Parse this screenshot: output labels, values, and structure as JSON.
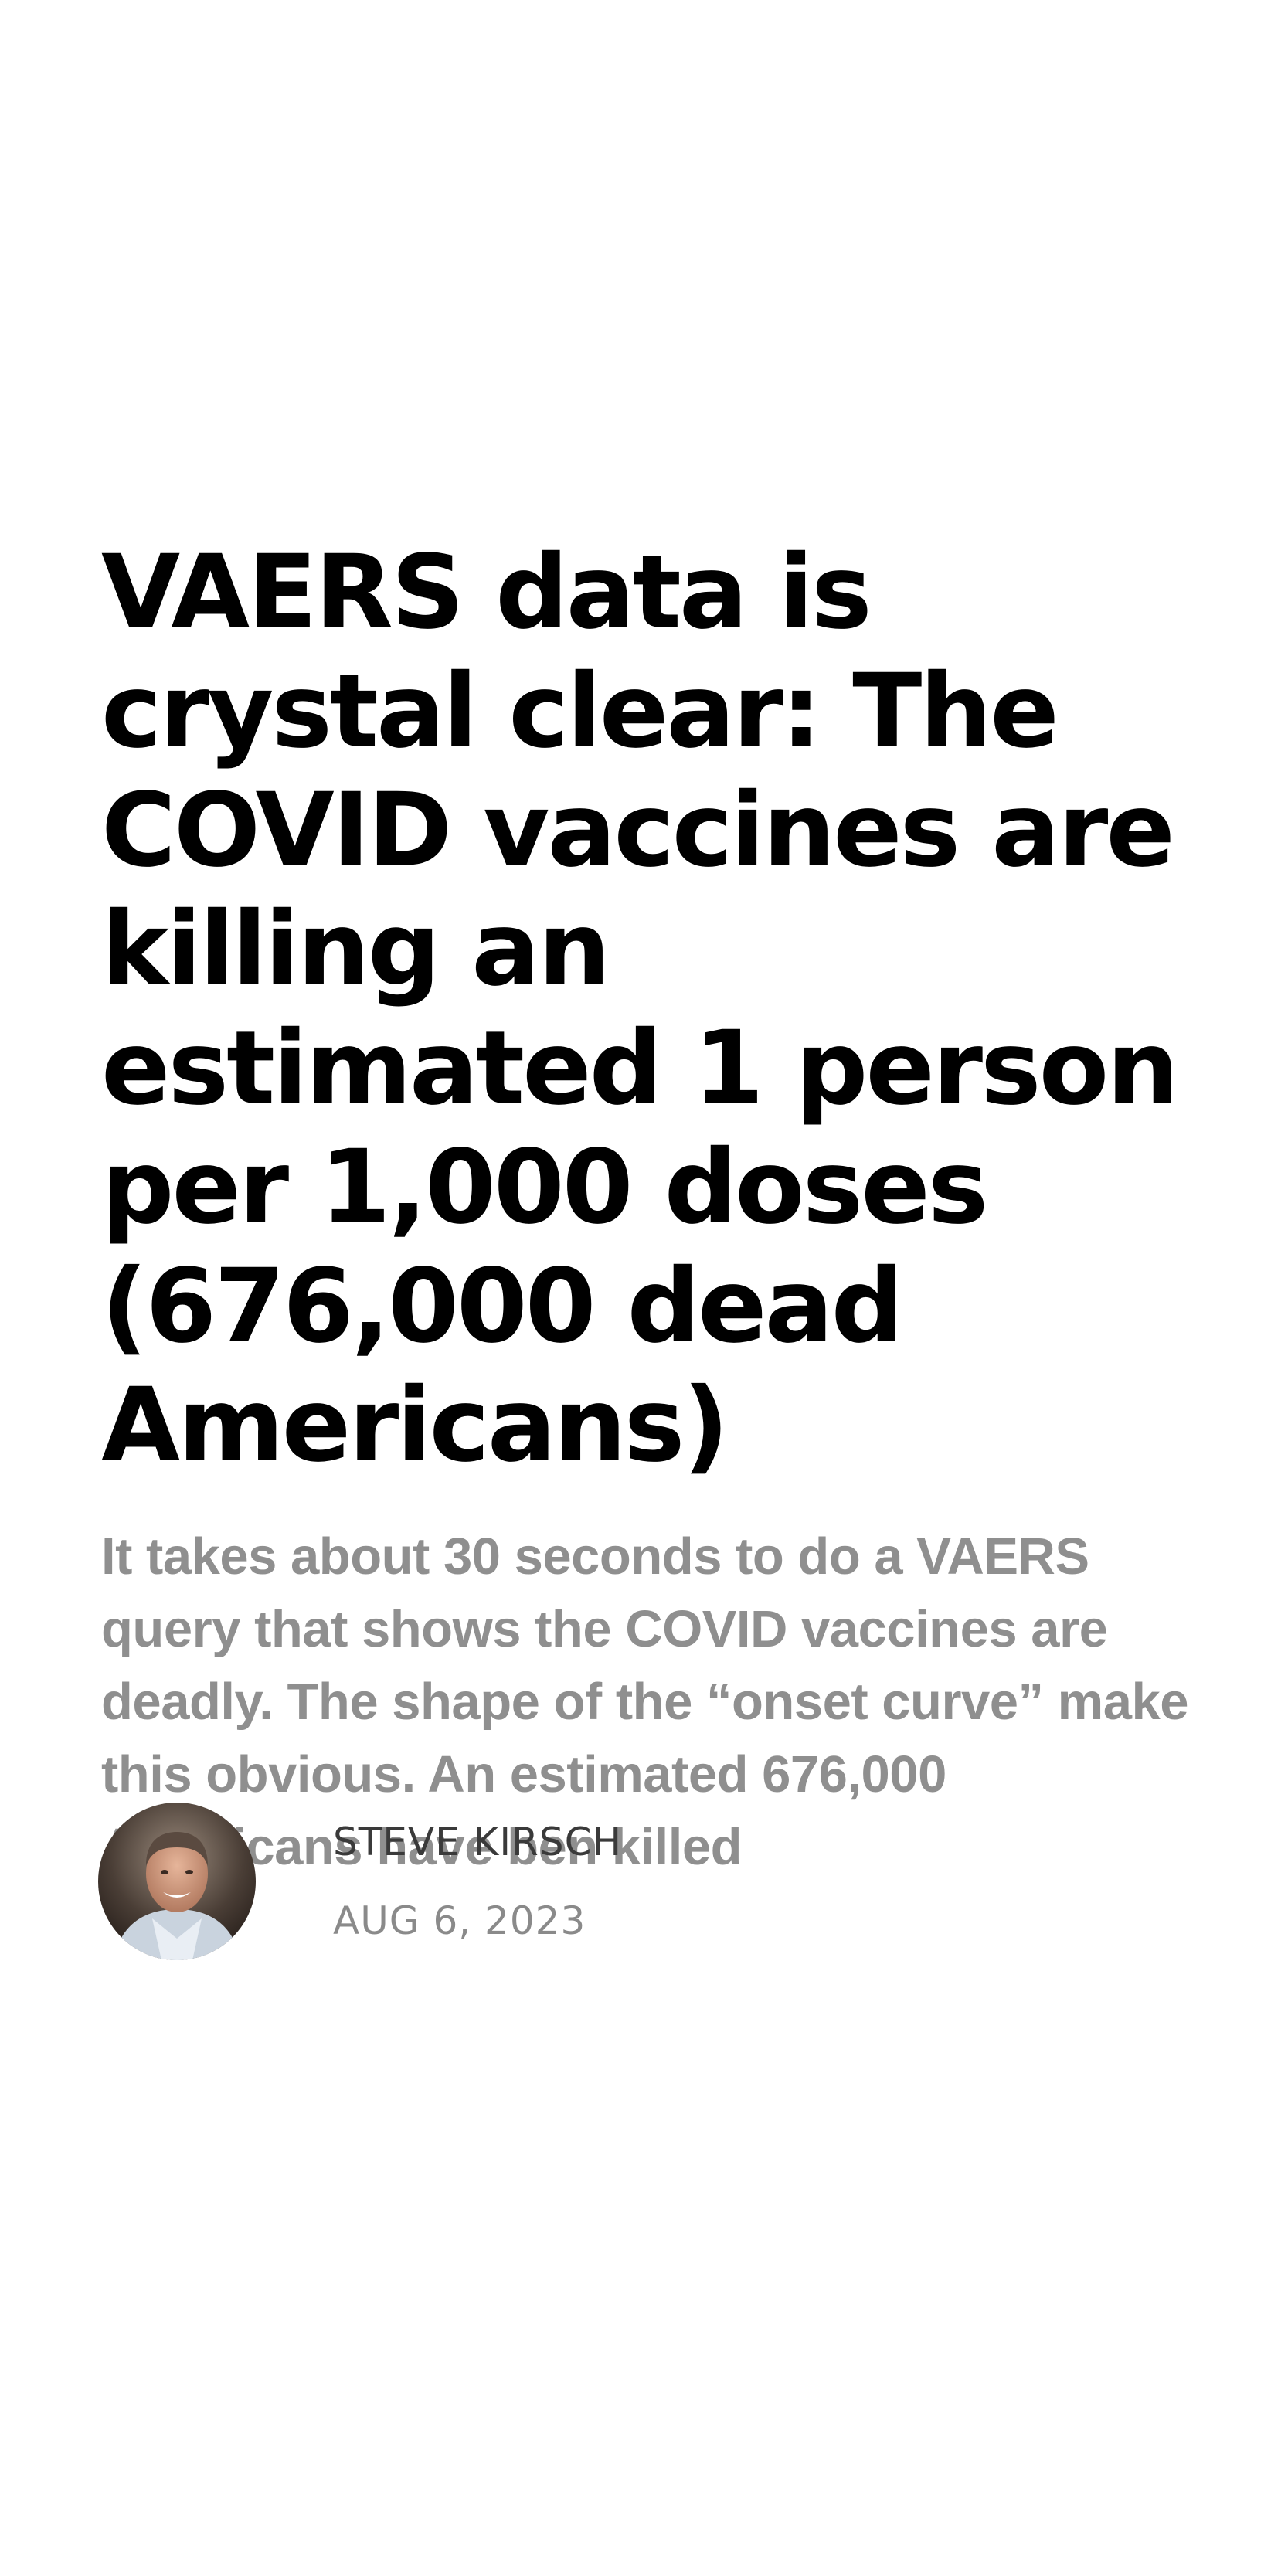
{
  "post": {
    "title": "VAERS data is crystal clear: The COVID vaccines are killing an estimated 1 person per 1,000 doses (676,000 dead Americans)",
    "subtitle": "It takes about 30 seconds to do a VAERS query that shows the COVID vaccines are deadly. The shape of the “onset curve” make this obvious. An estimated 676,000 Americans have ben killed",
    "author": {
      "name": "STEVE KIRSCH",
      "avatar_icon": "author-photo-icon"
    },
    "date": "AUG 6, 2023"
  },
  "colors": {
    "title": "#000000",
    "subtitle": "#8f8f8f",
    "author": "#3a3a3a",
    "date": "#8a8a8a",
    "background": "#ffffff"
  }
}
